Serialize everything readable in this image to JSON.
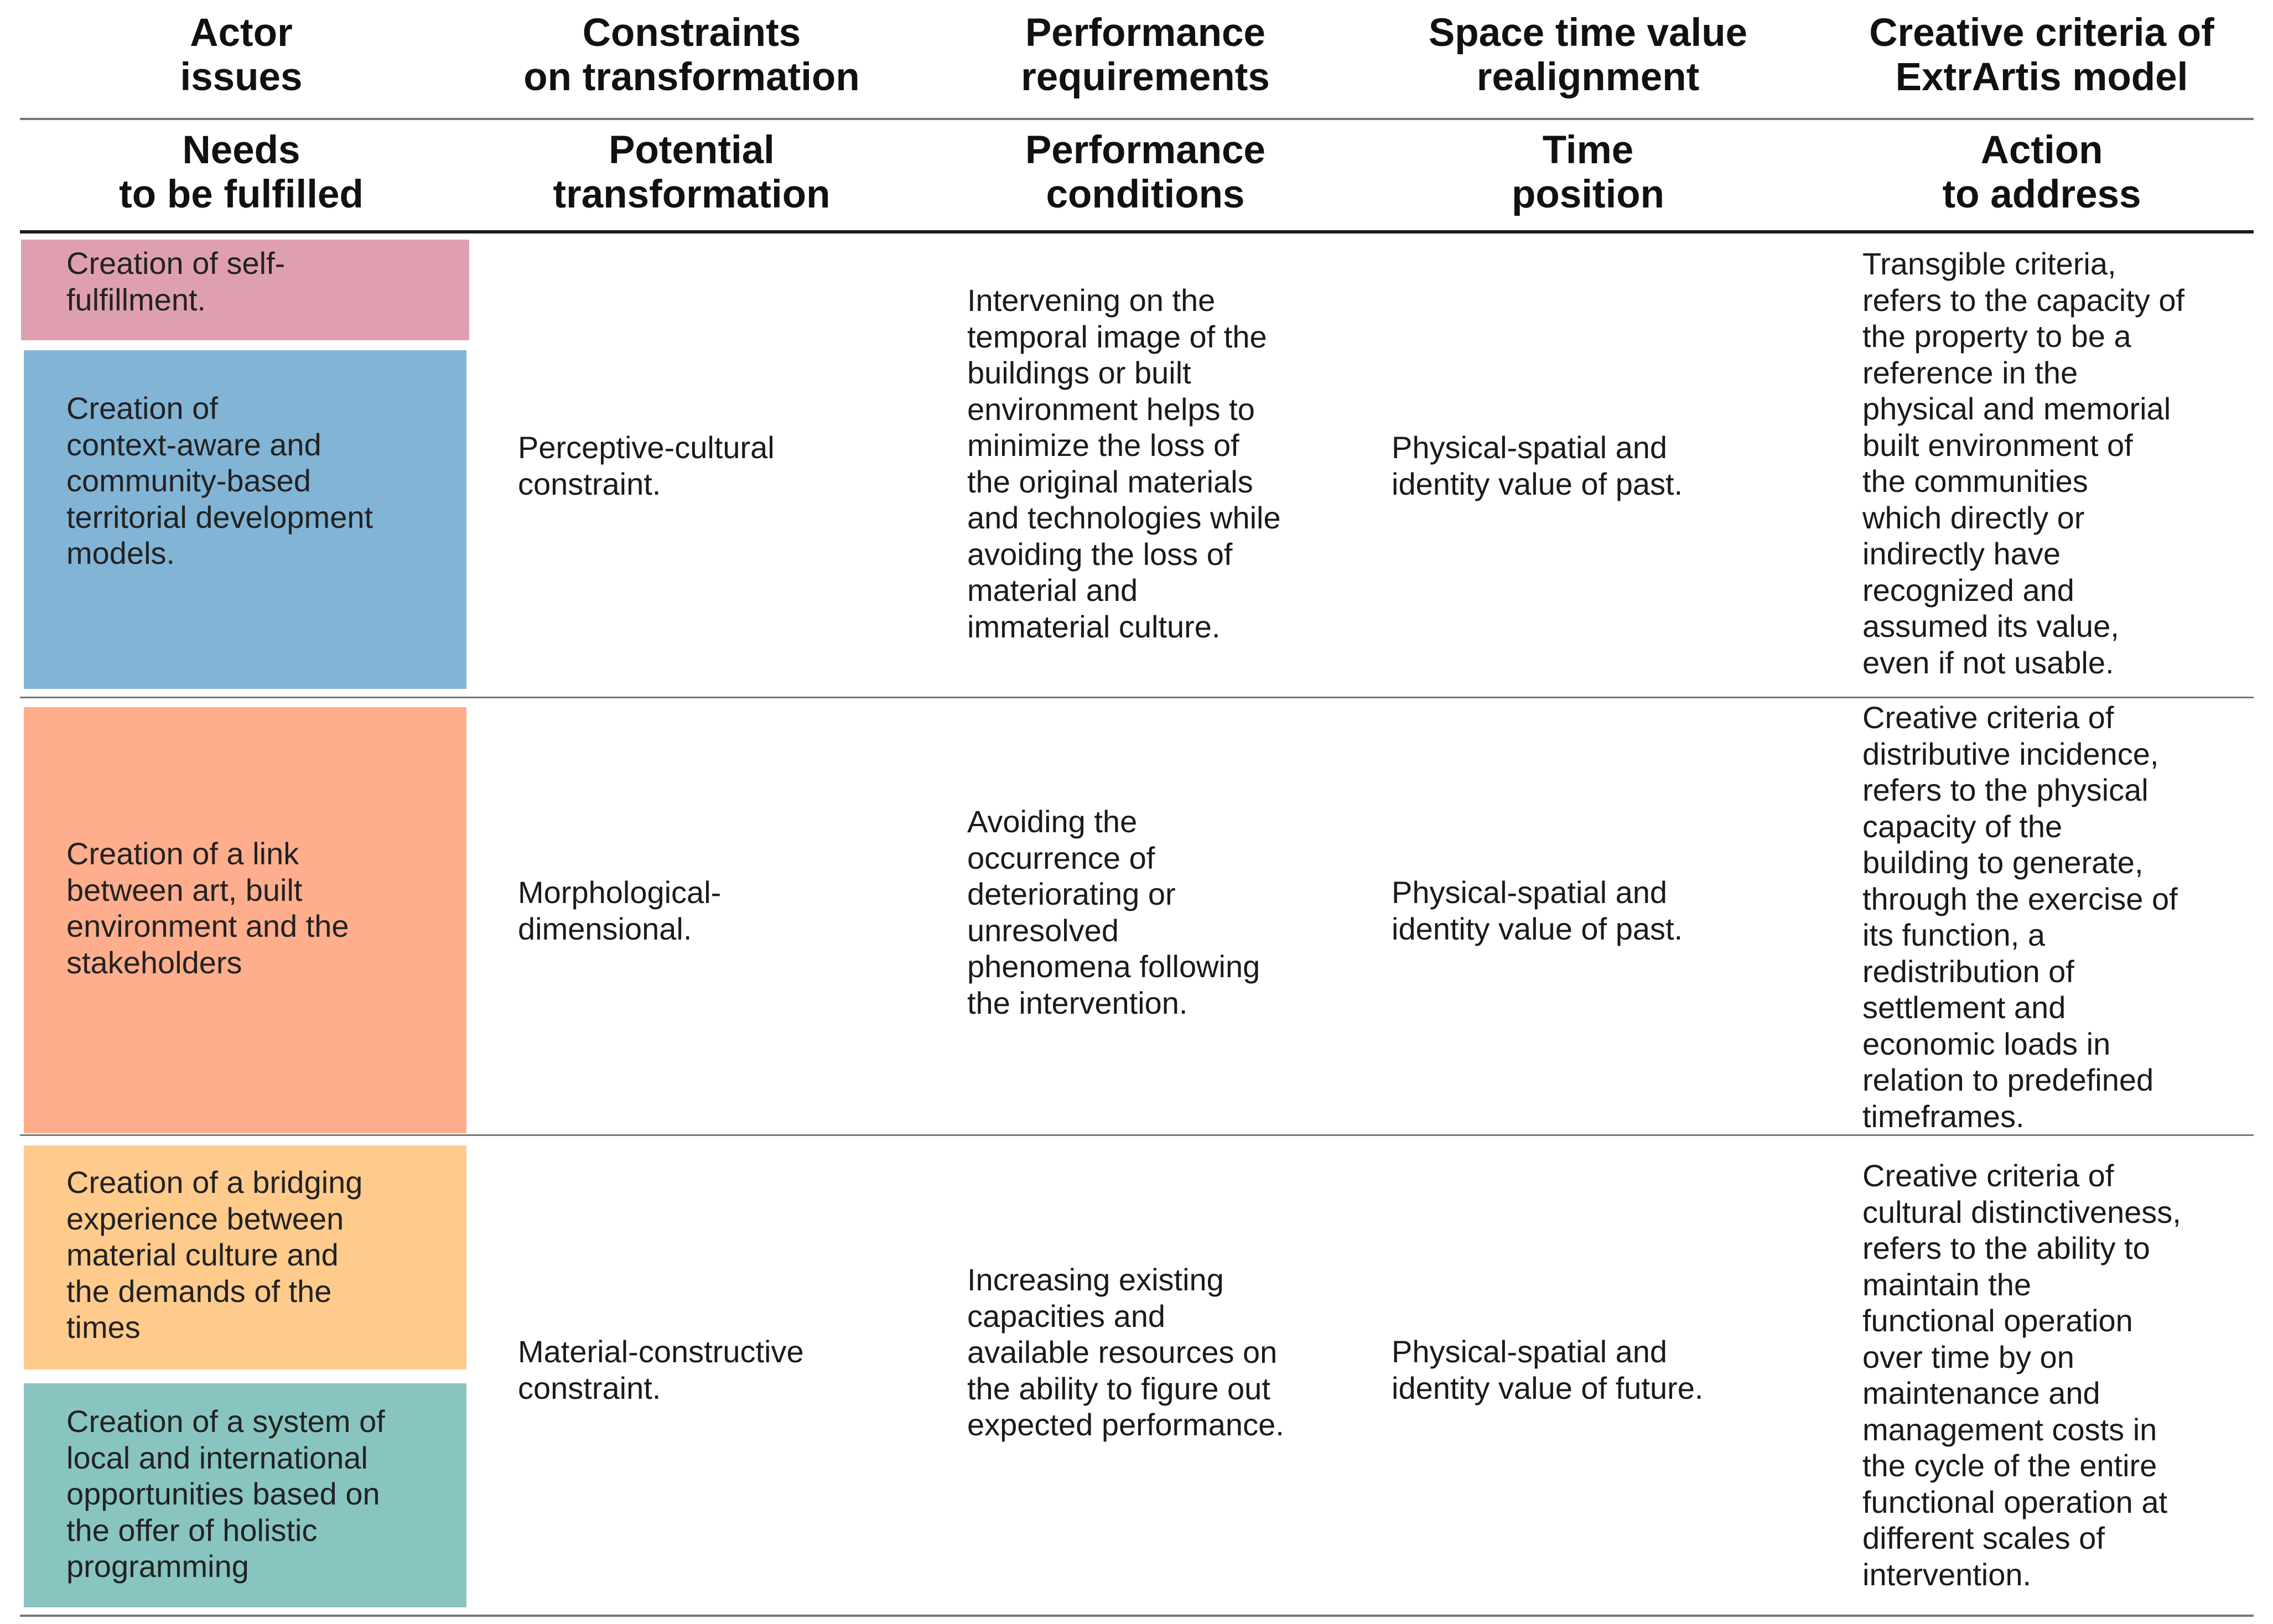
{
  "header": {
    "row1": [
      {
        "line1": "Actor",
        "line2": "issues"
      },
      {
        "line1": "Constraints",
        "line2": "on transformation"
      },
      {
        "line1": "Performance",
        "line2": "requirements"
      },
      {
        "line1": "Space time value",
        "line2": "realignment"
      },
      {
        "line1": "Creative criteria of",
        "line2": "ExtrArtis model"
      }
    ],
    "row2": [
      {
        "line1": "Needs",
        "line2": "to be fulfilled"
      },
      {
        "line1": "Potential",
        "line2": "transformation"
      },
      {
        "line1": "Performance",
        "line2": "conditions"
      },
      {
        "line1": "Time",
        "line2": "position"
      },
      {
        "line1": "Action",
        "line2": "to address"
      }
    ]
  },
  "needs": [
    {
      "text": "Creation of self-\nfulfillment.",
      "color": "#dea0b0"
    },
    {
      "text": "Creation of\ncontext-aware and\ncommunity-based\nterritorial development\nmodels.",
      "color": "#82b4d6"
    },
    {
      "text": "Creation of a link\nbetween art, built\nenvironment and the\nstakeholders",
      "color": "#feae8c"
    },
    {
      "text": "Creation of a bridging\nexperience between\nmaterial culture and\nthe demands of the\ntimes",
      "color": "#ffcb8d"
    },
    {
      "text": "Creation of a system of\nlocal and international\nopportunities based on\nthe offer of holistic\nprogramming",
      "color": "#88c5c0"
    }
  ],
  "rows": [
    {
      "transformation": "Perceptive-cultural\nconstraint.",
      "conditions": "Intervening on the\ntemporal image of the\nbuildings or built\nenvironment helps to\nminimize the loss of\nthe original materials\nand technologies while\navoiding the loss of\nmaterial and\nimmaterial culture.",
      "time_position": "Physical-spatial and\nidentity value of past.",
      "action": "Transgible criteria,\nrefers to the capacity of\nthe property to be a\nreference in the\nphysical and memorial\nbuilt environment of\nthe communities\nwhich directly or\nindirectly have\nrecognized and\nassumed its value,\neven if not usable."
    },
    {
      "transformation": "Morphological-\ndimensional.",
      "conditions": "Avoiding the\noccurrence of\ndeteriorating or\nunresolved\nphenomena following\nthe intervention.",
      "time_position": "Physical-spatial and\nidentity value of past.",
      "action": "Creative criteria of\ndistributive incidence,\nrefers to the physical\ncapacity of the\nbuilding to generate,\nthrough the exercise of\nits function, a\nredistribution of\nsettlement and\neconomic loads in\nrelation to predefined\ntimeframes."
    },
    {
      "transformation": "Material-constructive\nconstraint.",
      "conditions": "Increasing existing\ncapacities and\navailable resources on\nthe ability to figure out\nexpected performance.",
      "time_position": "Physical-spatial and\nidentity value of future.",
      "action": "Creative criteria of\ncultural distinctiveness,\nrefers to the ability to\nmaintain the\nfunctional operation\nover time by on\nmaintenance and\nmanagement costs in\nthe cycle of the entire\nfunctional operation at\ndifferent scales of\nintervention."
    }
  ]
}
